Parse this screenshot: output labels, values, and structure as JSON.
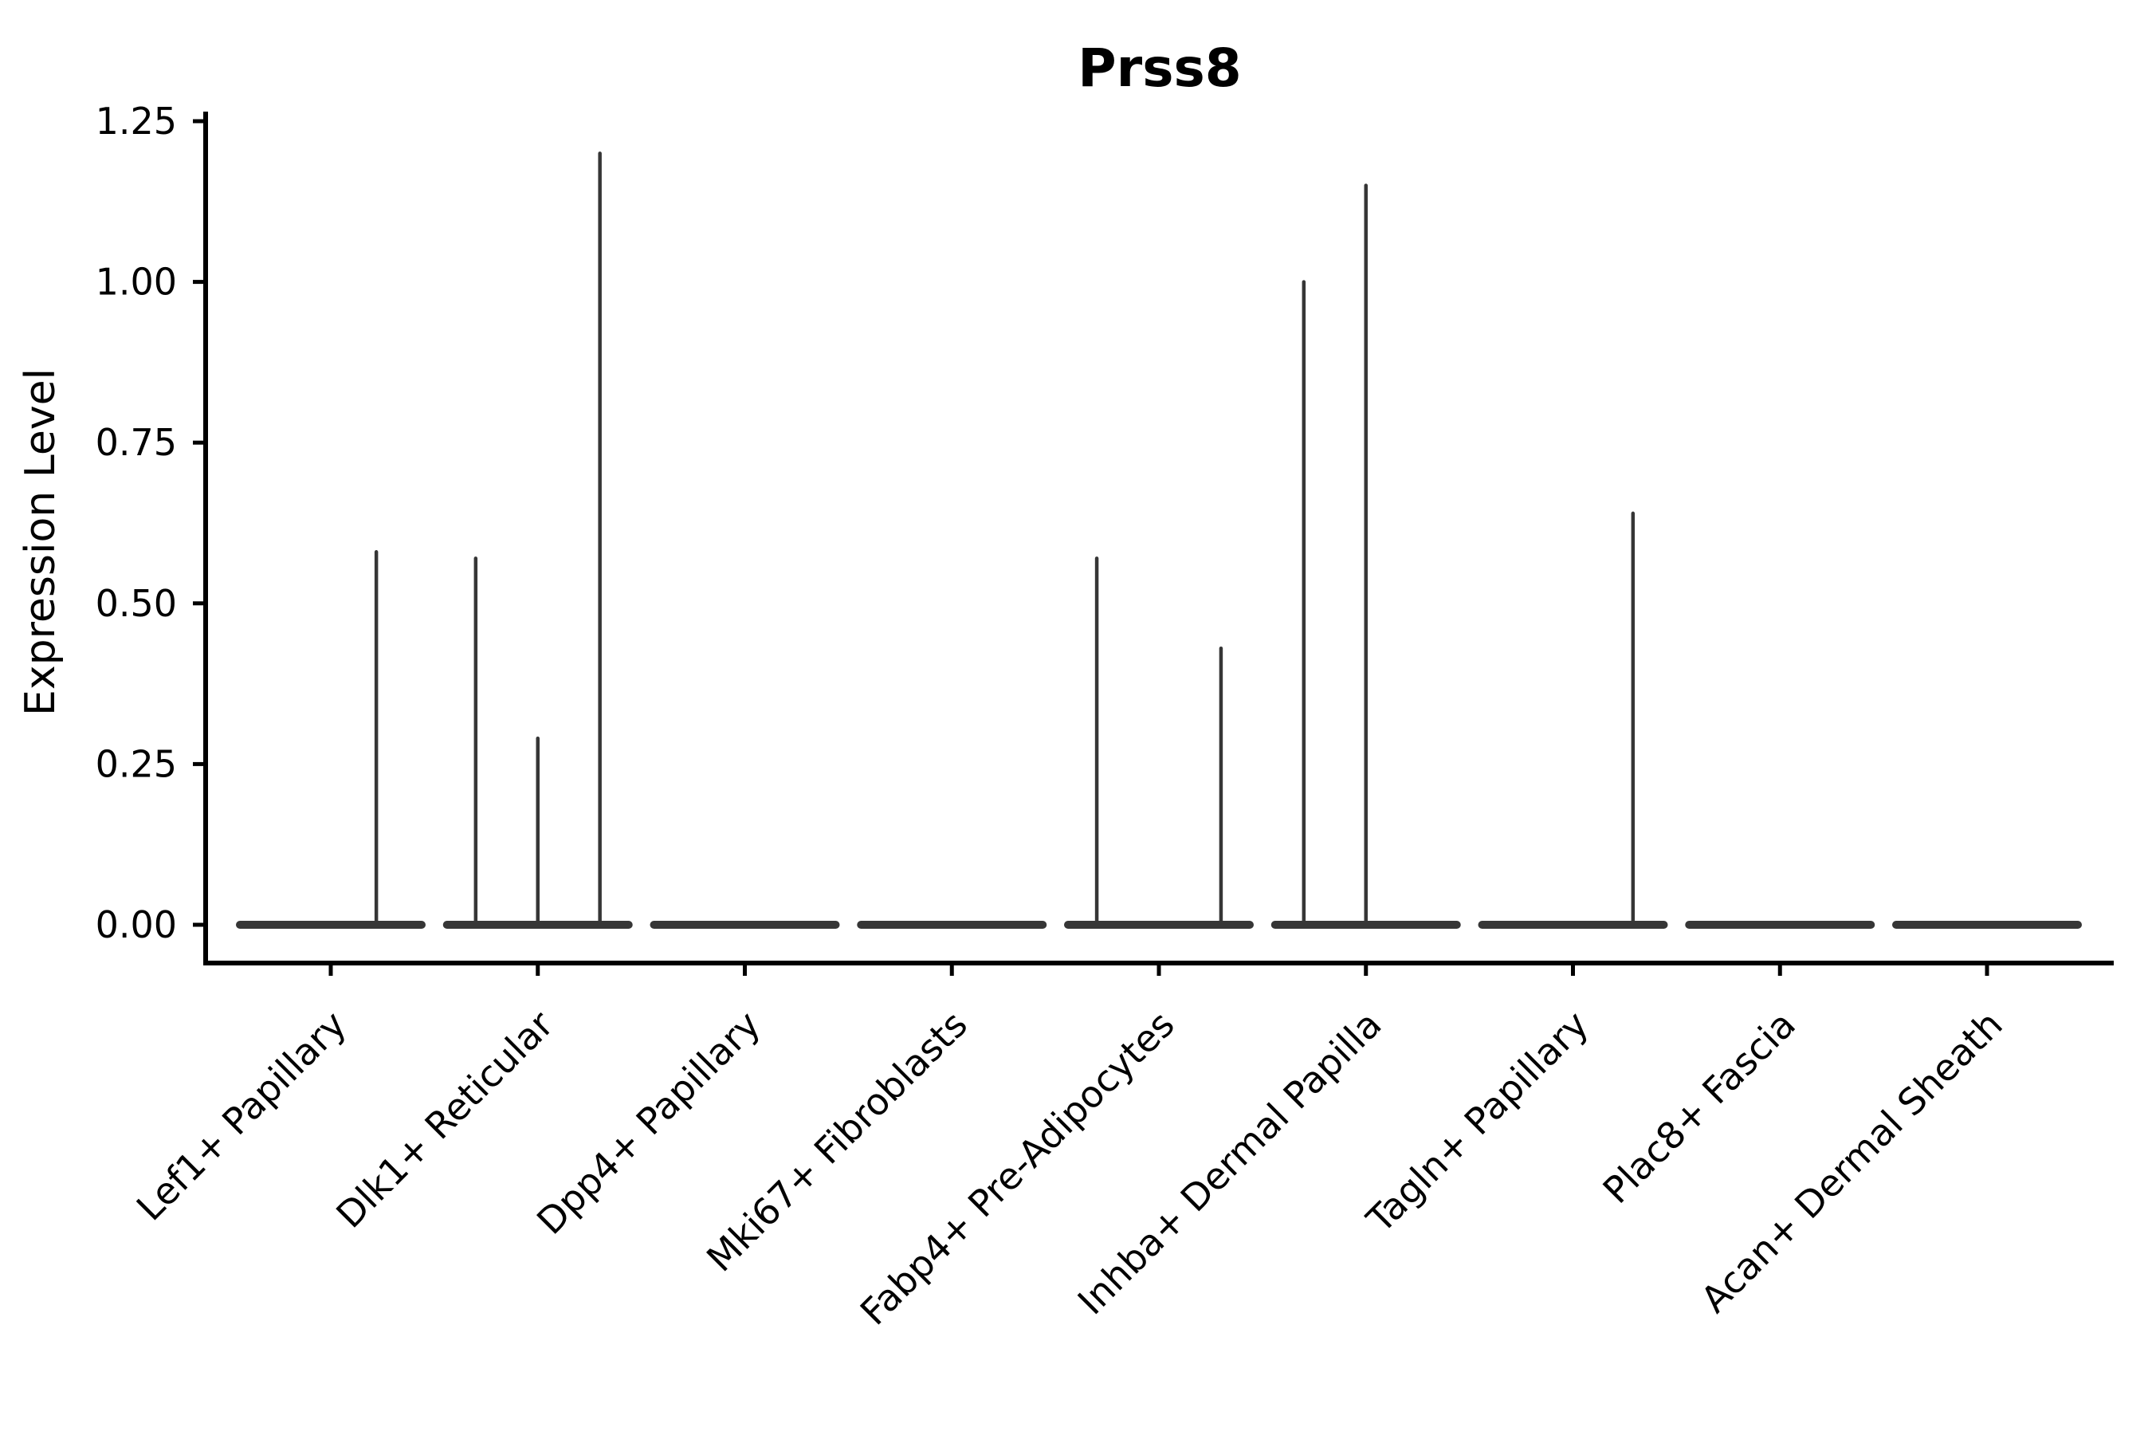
{
  "figure": {
    "background_color": "#ffffff",
    "axis_color": "#000000",
    "violin_color": "#363636"
  },
  "chart_data": {
    "type": "violin",
    "title": "Prss8",
    "xlabel": "",
    "ylabel": "Expression Level",
    "ylim": [
      0,
      1.25
    ],
    "yticks": [
      "0.00",
      "0.25",
      "0.50",
      "0.75",
      "1.00",
      "1.25"
    ],
    "ytick_values": [
      0.0,
      0.25,
      0.5,
      0.75,
      1.0,
      1.25
    ],
    "grid": false,
    "legend": null,
    "categories": [
      "Lef1+ Papillary",
      "Dlk1+ Reticular",
      "Dpp4+ Papillary",
      "Mki67+ Fibroblasts",
      "Fabp4+ Pre-Adipocytes",
      "Inhba+ Dermal Papilla",
      "Tagln+ Papillary",
      "Plac8+ Fascia",
      "Acan+ Dermal Sheath"
    ],
    "violins": [
      {
        "category": "Lef1+ Papillary",
        "baseline_value": 0.0,
        "spikes": [
          {
            "rel_x": 0.22,
            "value": 0.58
          }
        ]
      },
      {
        "category": "Dlk1+ Reticular",
        "baseline_value": 0.0,
        "spikes": [
          {
            "rel_x": -0.3,
            "value": 0.57
          },
          {
            "rel_x": 0.0,
            "value": 0.29
          },
          {
            "rel_x": 0.3,
            "value": 1.2
          }
        ]
      },
      {
        "category": "Dpp4+ Papillary",
        "baseline_value": 0.0,
        "spikes": []
      },
      {
        "category": "Mki67+ Fibroblasts",
        "baseline_value": 0.0,
        "spikes": []
      },
      {
        "category": "Fabp4+ Pre-Adipocytes",
        "baseline_value": 0.0,
        "spikes": [
          {
            "rel_x": -0.3,
            "value": 0.57
          },
          {
            "rel_x": 0.3,
            "value": 0.43
          }
        ]
      },
      {
        "category": "Inhba+ Dermal Papilla",
        "baseline_value": 0.0,
        "spikes": [
          {
            "rel_x": -0.3,
            "value": 1.0
          },
          {
            "rel_x": 0.0,
            "value": 1.15
          }
        ]
      },
      {
        "category": "Tagln+ Papillary",
        "baseline_value": 0.0,
        "spikes": [
          {
            "rel_x": 0.29,
            "value": 0.64
          }
        ]
      },
      {
        "category": "Plac8+ Fascia",
        "baseline_value": 0.0,
        "spikes": []
      },
      {
        "category": "Acan+ Dermal Sheath",
        "baseline_value": 0.0,
        "spikes": []
      }
    ]
  }
}
